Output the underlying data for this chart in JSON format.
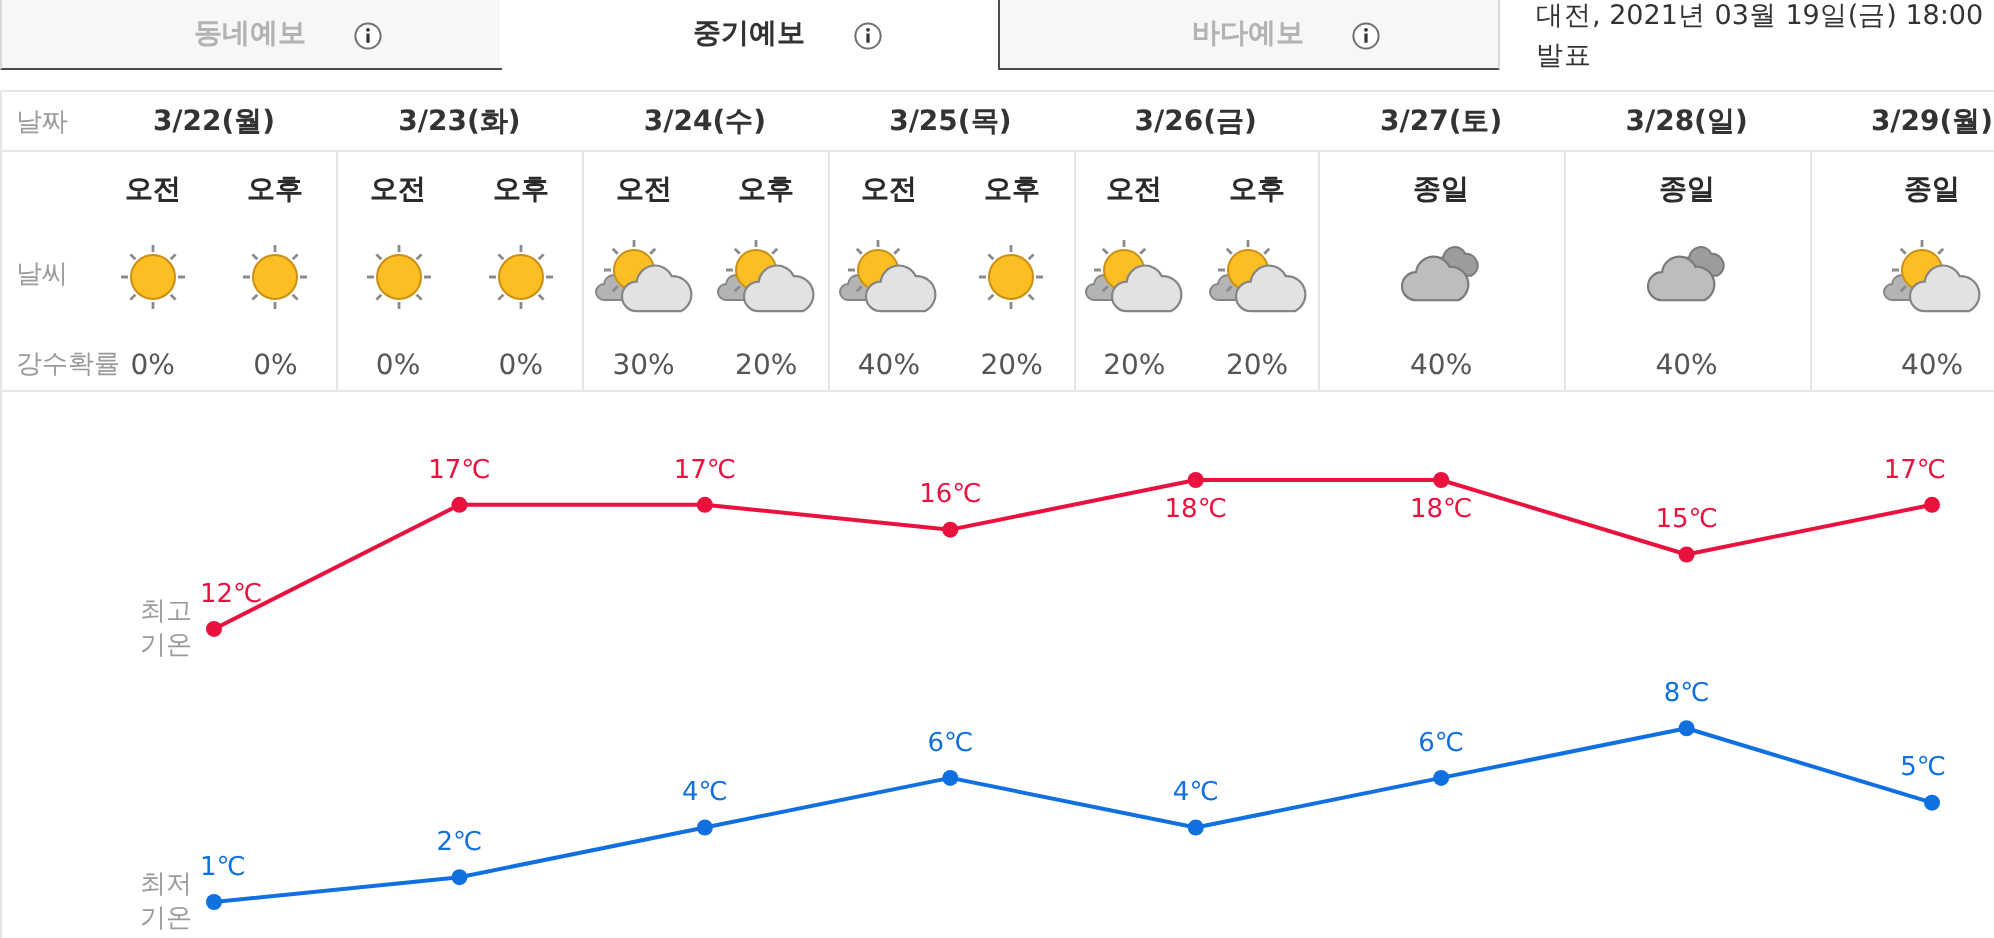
{
  "chart_data": {
    "type": "line",
    "categories": [
      "3/22(월)",
      "3/23(화)",
      "3/24(수)",
      "3/25(목)",
      "3/26(금)",
      "3/27(토)",
      "3/28(일)",
      "3/29(월)"
    ],
    "series": [
      {
        "name": "최고 기온",
        "color": "#e9123e",
        "values": [
          12,
          17,
          17,
          16,
          18,
          18,
          15,
          17
        ],
        "value_labels": [
          "12℃",
          "17℃",
          "17℃",
          "16℃",
          "18℃",
          "18℃",
          "15℃",
          "17℃"
        ]
      },
      {
        "name": "최저 기온",
        "color": "#1170e0",
        "values": [
          1,
          2,
          4,
          6,
          4,
          6,
          8,
          5
        ],
        "value_labels": [
          "1℃",
          "2℃",
          "4℃",
          "6℃",
          "4℃",
          "6℃",
          "8℃",
          "5℃"
        ]
      }
    ],
    "tick_labels": "x",
    "grid": false,
    "legend": false,
    "marker": "circle",
    "line_style": "solid",
    "annotations": [
      "동네예보",
      "중기예보",
      "바다예보",
      "대전, 2021년 03월 19일(금) 18:00 발표",
      "날짜",
      "날씨",
      "강수확률",
      "오전",
      "0%",
      "오후",
      "0%",
      "오전",
      "0%",
      "오후",
      "0%",
      "오전",
      "30%",
      "오후",
      "20%",
      "오전",
      "40%",
      "오후",
      "20%",
      "오전",
      "20%",
      "오후",
      "20%",
      "종일",
      "40%",
      "종일",
      "40%",
      "종일",
      "40%"
    ]
  }
}
